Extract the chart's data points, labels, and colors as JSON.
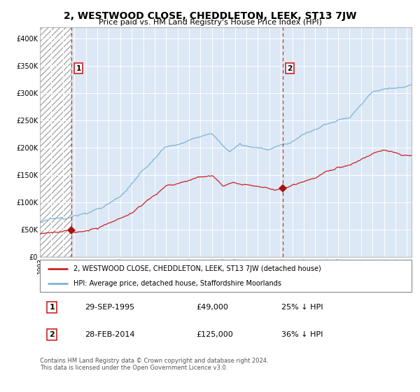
{
  "title": "2, WESTWOOD CLOSE, CHEDDLETON, LEEK, ST13 7JW",
  "subtitle": "Price paid vs. HM Land Registry's House Price Index (HPI)",
  "legend_line1": "2, WESTWOOD CLOSE, CHEDDLETON, LEEK, ST13 7JW (detached house)",
  "legend_line2": "HPI: Average price, detached house, Staffordshire Moorlands",
  "sale1_date": "29-SEP-1995",
  "sale1_price": 49000,
  "sale1_label": "25% ↓ HPI",
  "sale2_date": "28-FEB-2014",
  "sale2_price": 125000,
  "sale2_label": "36% ↓ HPI",
  "footnote": "Contains HM Land Registry data © Crown copyright and database right 2024.\nThis data is licensed under the Open Government Licence v3.0.",
  "hpi_color": "#7ab5d8",
  "price_color": "#cc2222",
  "sale_marker_color": "#aa1111",
  "dashed_line_color": "#cc3333",
  "background_plot": "#dce8f5",
  "grid_color": "#ffffff",
  "ylim": [
    0,
    420000
  ],
  "yticks": [
    0,
    50000,
    100000,
    150000,
    200000,
    250000,
    300000,
    350000,
    400000
  ],
  "sale1_x": 1995.75,
  "sale2_x": 2014.16,
  "xstart": 1993.0,
  "xend": 2025.4,
  "title_fontsize": 10,
  "subtitle_fontsize": 8,
  "tick_fontsize": 6.5
}
